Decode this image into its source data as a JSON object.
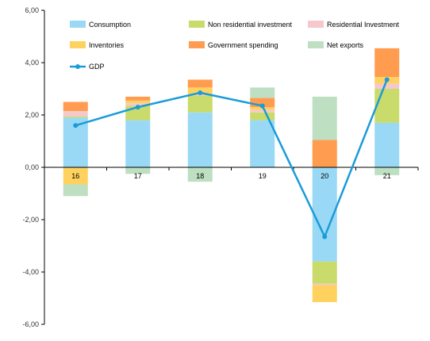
{
  "chart_data": {
    "type": "bar",
    "stacked": true,
    "title": "",
    "xlabel": "",
    "ylabel": "",
    "categories": [
      "16",
      "17",
      "18",
      "19",
      "20",
      "21"
    ],
    "ylim": [
      -6,
      6
    ],
    "yticks": [
      "-6,00",
      "-4,00",
      "-2,00",
      "0,00",
      "2,00",
      "4,00",
      "6,00"
    ],
    "legend_position": "top",
    "grid": false,
    "series": [
      {
        "name": "Consumption",
        "color": "#99D9F6",
        "values": [
          1.9,
          1.8,
          2.1,
          1.8,
          -3.6,
          1.7
        ]
      },
      {
        "name": "Non residential investment",
        "color": "#C9DB6A",
        "values": [
          0.05,
          0.55,
          0.65,
          0.3,
          -0.85,
          1.3
        ]
      },
      {
        "name": "Residential Investment",
        "color": "#F6C8CD",
        "values": [
          0.2,
          0.1,
          0.05,
          0.1,
          -0.05,
          0.2
        ]
      },
      {
        "name": "Inventories",
        "color": "#FFD15E",
        "values": [
          -0.65,
          0.1,
          0.25,
          0.1,
          -0.65,
          0.25
        ]
      },
      {
        "name": "Government spending",
        "color": "#FF9C4F",
        "values": [
          0.35,
          0.15,
          0.3,
          0.35,
          1.05,
          1.1
        ]
      },
      {
        "name": "Net exports",
        "color": "#BEDFC1",
        "values": [
          -0.45,
          -0.25,
          -0.55,
          0.4,
          1.65,
          -0.3
        ]
      }
    ],
    "line": {
      "name": "GDP",
      "color": "#1A9CD8",
      "values": [
        1.6,
        2.3,
        2.85,
        2.35,
        -2.65,
        3.35
      ]
    }
  }
}
